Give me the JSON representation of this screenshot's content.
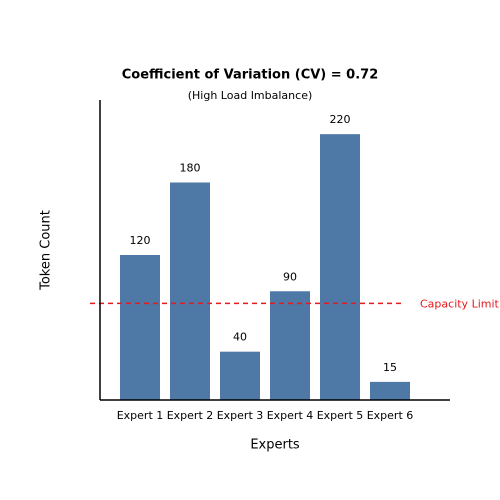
{
  "chart_data": {
    "type": "bar",
    "title": "Coefficient of Variation (CV) = 0.72",
    "subtitle": "(High Load Imbalance)",
    "x_label": "Experts",
    "y_label": "Token Count",
    "categories": [
      "Expert 1",
      "Expert 2",
      "Expert 3",
      "Expert 4",
      "Expert 5",
      "Expert 6"
    ],
    "values": [
      120,
      180,
      40,
      90,
      220,
      15
    ],
    "color": "#4e79a7",
    "ylim": [
      0,
      240
    ],
    "reference_line": {
      "value": 80,
      "label": "Capacity Limit",
      "color": "#e41a1c"
    }
  }
}
